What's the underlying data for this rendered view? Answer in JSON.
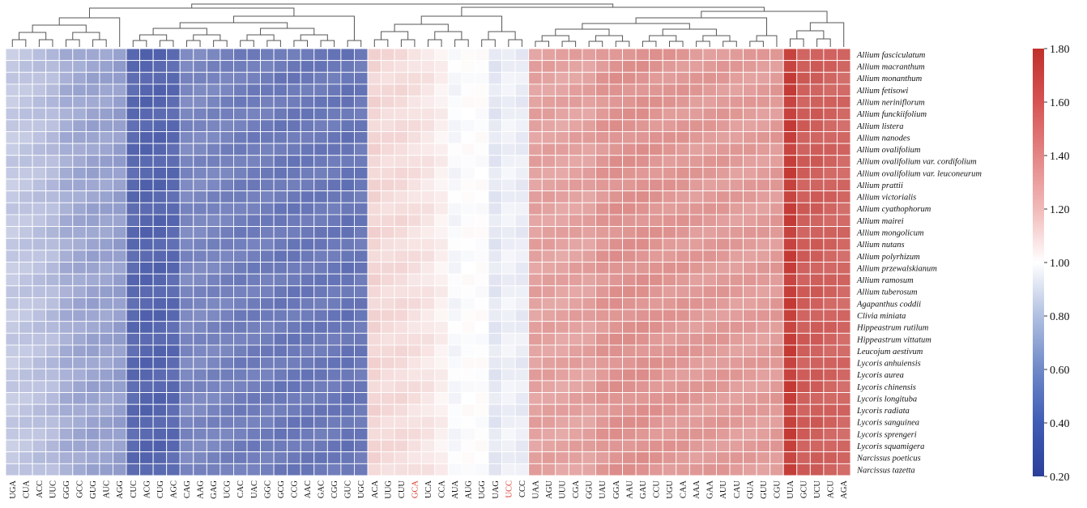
{
  "chart_data": {
    "type": "heatmap",
    "title": "",
    "xlabel": "",
    "ylabel": "",
    "columns": [
      "UGA",
      "CUA",
      "ACC",
      "UUC",
      "GGG",
      "GCC",
      "GUG",
      "AUC",
      "AGG",
      "CUC",
      "ACG",
      "CUG",
      "AGC",
      "CAG",
      "AAG",
      "GAG",
      "UCG",
      "CAC",
      "UAC",
      "GGC",
      "GCG",
      "CCG",
      "AAC",
      "GAC",
      "CGG",
      "GUC",
      "UGC",
      "ACA",
      "UUG",
      "CUU",
      "GCA",
      "UCA",
      "CCA",
      "AUA",
      "AUG",
      "UGG",
      "UAG",
      "UCC",
      "CCC",
      "UAA",
      "AGU",
      "UUU",
      "CGA",
      "GGU",
      "UAU",
      "GGA",
      "AAU",
      "GAU",
      "CCU",
      "UGU",
      "CAA",
      "AAA",
      "GAA",
      "AUU",
      "CAU",
      "GUA",
      "GUU",
      "CGU",
      "UUA",
      "GCU",
      "UCU",
      "ACU",
      "AGA"
    ],
    "highlighted_columns": [
      "GCA",
      "UCC"
    ],
    "highlight_color": "#d93a2b",
    "rows": [
      "Allium fasciculatum",
      "Allium macranthum",
      "Allium monanthum",
      "Allium fetisowi",
      "Allium neriniflorum",
      "Allium funckiifolium",
      "Allium listera",
      "Allium nanodes",
      "Allium ovalifolium",
      "Allium ovalifolium var. cordifolium",
      "Allium ovalifolium var. leuconeurum",
      "Allium prattii",
      "Allium victorialis",
      "Allium cyathophorum",
      "Allium mairei",
      "Allium mongolicum",
      "Allium nutans",
      "Allium polyrhizum",
      "Allium przewalskianum",
      "Allium ramosum",
      "Allium tuberosum",
      "Agapanthus coddii",
      "Clivia miniata",
      "Hippeastrum rutilum",
      "Hippeastrum vittatum",
      "Leucojum aestivum",
      "Lycoris anhuiensis",
      "Lycoris aurea",
      "Lycoris chinensis",
      "Lycoris longituba",
      "Lycoris radiata",
      "Lycoris sanguinea",
      "Lycoris sprengeri",
      "Lycoris squamigera",
      "Narcissus poeticus",
      "Narcissus tazetta"
    ],
    "column_mean_values": [
      0.78,
      0.76,
      0.74,
      0.72,
      0.66,
      0.64,
      0.62,
      0.62,
      0.6,
      0.38,
      0.36,
      0.36,
      0.38,
      0.5,
      0.5,
      0.49,
      0.48,
      0.46,
      0.46,
      0.46,
      0.44,
      0.44,
      0.44,
      0.44,
      0.44,
      0.42,
      0.44,
      1.16,
      1.14,
      1.14,
      1.12,
      1.1,
      1.06,
      0.97,
      1.0,
      1.0,
      0.9,
      0.94,
      0.92,
      1.36,
      1.36,
      1.35,
      1.36,
      1.36,
      1.4,
      1.42,
      1.42,
      1.42,
      1.41,
      1.4,
      1.4,
      1.39,
      1.39,
      1.39,
      1.38,
      1.38,
      1.38,
      1.39,
      1.74,
      1.62,
      1.62,
      1.6,
      1.58
    ],
    "colorbar": {
      "min": 0.2,
      "max": 1.8,
      "ticks": [
        "1.80",
        "1.60",
        "1.40",
        "1.20",
        "1.00",
        "0.80",
        "0.60",
        "0.40",
        "0.20"
      ],
      "low_color": "#2b3f9a",
      "mid_color": "#ffffff",
      "high_color": "#c0302b"
    },
    "dendrogram": "column-clustering",
    "grid": true,
    "legend_position": "right"
  }
}
